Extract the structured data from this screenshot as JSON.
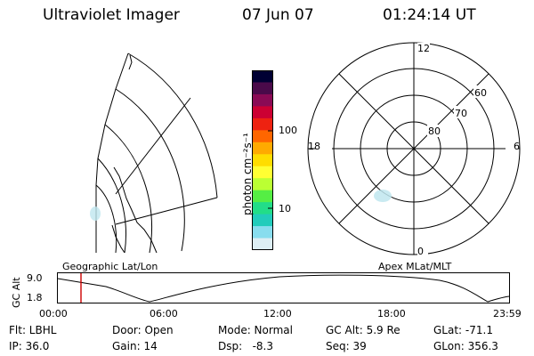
{
  "header": {
    "instrument": "Ultraviolet Imager",
    "date": "07 Jun 07",
    "time": "01:24:14 UT"
  },
  "geo_panel": {
    "label": "Geographic Lat/Lon"
  },
  "colorbar": {
    "axis_label": "photon cm⁻²s⁻¹",
    "ticks": [
      "100",
      "10"
    ],
    "scale": "log",
    "colors": [
      "#000033",
      "#4a0a4a",
      "#8a0a55",
      "#cc0033",
      "#ee2211",
      "#ff6600",
      "#ffaa00",
      "#ffdd00",
      "#ffff33",
      "#bbff33",
      "#55ee44",
      "#22dd88",
      "#22ccbb",
      "#88ddee",
      "#ddeef4"
    ]
  },
  "polar_panel": {
    "label": "Apex MLat/MLT",
    "mlt_labels": [
      "12",
      "18",
      "6",
      "0"
    ],
    "lat_labels": [
      "60",
      "70",
      "80"
    ]
  },
  "altitude_strip": {
    "ylabel": "GC Alt",
    "yticks": [
      "9.0",
      "1.8"
    ],
    "xticks": [
      "00:00",
      "06:00",
      "12:00",
      "18:00",
      "23:59"
    ],
    "marker_time": "01:24",
    "marker_color": "#cc0000"
  },
  "info": {
    "filter": "Flt: LBHL",
    "ip": "IP: 36.0",
    "door": "Door: Open",
    "gain": "Gain: 14",
    "mode": "Mode: Normal",
    "dsp": "Dsp:   -8.3",
    "gc_alt": "GC Alt: 5.9 Re",
    "seq": "Seq: 39",
    "glat": "GLat: -71.1",
    "glon": "GLon: 356.3"
  }
}
